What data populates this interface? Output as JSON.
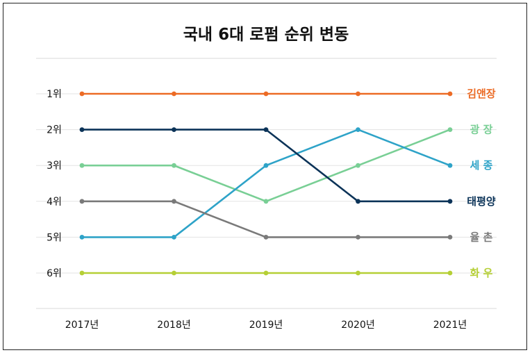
{
  "chart_data": {
    "type": "line",
    "title": "국내 6대 로펌 순위 변동",
    "x": [
      "2017년",
      "2018년",
      "2019년",
      "2020년",
      "2021년"
    ],
    "y_tick_labels": [
      "1위",
      "2위",
      "3위",
      "4위",
      "5위",
      "6위"
    ],
    "ylim": [
      1,
      6
    ],
    "y_inverted": true,
    "grid": true,
    "legend": "labels at line ends (right)",
    "series": [
      {
        "name": "김앤장",
        "values": [
          1,
          1,
          1,
          1,
          1
        ],
        "color": "#ec6b25"
      },
      {
        "name": "광 장",
        "values": [
          3,
          3,
          4,
          3,
          2
        ],
        "color": "#79cf95"
      },
      {
        "name": "세 종",
        "values": [
          5,
          5,
          3,
          2,
          3
        ],
        "color": "#2ea3c8"
      },
      {
        "name": "태평양",
        "values": [
          2,
          2,
          2,
          4,
          4
        ],
        "color": "#0b3358"
      },
      {
        "name": "율 촌",
        "values": [
          4,
          4,
          5,
          5,
          5
        ],
        "color": "#7a7a7a"
      },
      {
        "name": "화 우",
        "values": [
          6,
          6,
          6,
          6,
          6
        ],
        "color": "#b5cf35"
      }
    ]
  }
}
